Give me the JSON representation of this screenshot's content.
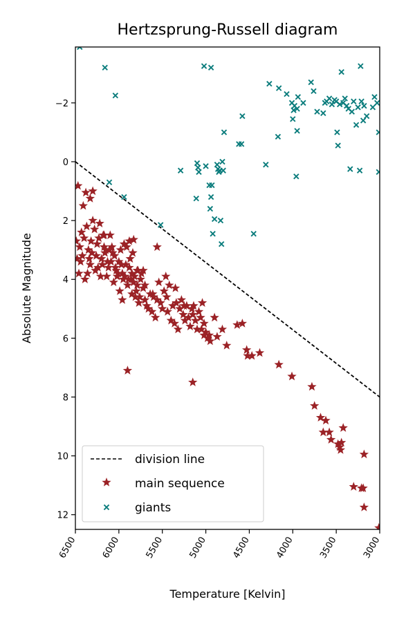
{
  "chart_data": {
    "type": "scatter",
    "title": "Hertzsprung-Russell diagram",
    "xlabel": "Temperature [Kelvin]",
    "ylabel": "Absolute Magnitude",
    "xlim": [
      6500,
      3000
    ],
    "ylim": [
      12.5,
      -3.9
    ],
    "xticks": [
      6500,
      6000,
      5500,
      5000,
      4500,
      4000,
      3500,
      3000
    ],
    "xtick_labels": [
      "6500",
      "6000",
      "5500",
      "5000",
      "4500",
      "4000",
      "3500",
      "3000"
    ],
    "yticks": [
      -2,
      0,
      2,
      4,
      6,
      8,
      10,
      12
    ],
    "ytick_labels": [
      "−2",
      "0",
      "2",
      "4",
      "6",
      "8",
      "10",
      "12"
    ],
    "grid": false,
    "legend_position": "lower-left",
    "colors": {
      "division_line": "#000000",
      "main_sequence": "#9b2226",
      "giants": "#0a7c7c"
    },
    "series": [
      {
        "name": "division line",
        "kind": "line",
        "points": [
          [
            6500,
            0
          ],
          [
            3000,
            8
          ]
        ]
      },
      {
        "name": "main sequence",
        "kind": "scatter",
        "marker": "star",
        "points": [
          [
            6470,
            0.82
          ],
          [
            6410,
            1.5
          ],
          [
            6380,
            1.05
          ],
          [
            6330,
            1.25
          ],
          [
            6300,
            1.0
          ],
          [
            6490,
            2.7
          ],
          [
            6450,
            2.9
          ],
          [
            6420,
            3.2
          ],
          [
            6400,
            2.6
          ],
          [
            6370,
            2.2
          ],
          [
            6350,
            3.0
          ],
          [
            6330,
            3.5
          ],
          [
            6300,
            2.0
          ],
          [
            6280,
            2.3
          ],
          [
            6250,
            2.8
          ],
          [
            6220,
            2.1
          ],
          [
            6200,
            3.3
          ],
          [
            6180,
            2.5
          ],
          [
            6150,
            3.0
          ],
          [
            6120,
            3.6
          ],
          [
            6100,
            2.5
          ],
          [
            6080,
            2.9
          ],
          [
            6050,
            3.2
          ],
          [
            6030,
            3.7
          ],
          [
            6000,
            3.4
          ],
          [
            5980,
            3.0
          ],
          [
            5960,
            3.8
          ],
          [
            5940,
            2.8
          ],
          [
            5920,
            3.5
          ],
          [
            5900,
            4.2
          ],
          [
            5880,
            3.6
          ],
          [
            5860,
            4.0
          ],
          [
            5840,
            3.1
          ],
          [
            5820,
            3.9
          ],
          [
            5800,
            4.4
          ],
          [
            5780,
            3.7
          ],
          [
            5760,
            4.6
          ],
          [
            5740,
            3.8
          ],
          [
            5720,
            4.3
          ],
          [
            5700,
            4.7
          ],
          [
            6460,
            3.8
          ],
          [
            6440,
            3.4
          ],
          [
            6390,
            4.0
          ],
          [
            6360,
            3.8
          ],
          [
            6340,
            3.3
          ],
          [
            6310,
            3.1
          ],
          [
            6270,
            3.7
          ],
          [
            6240,
            3.6
          ],
          [
            6210,
            3.9
          ],
          [
            6190,
            3.5
          ],
          [
            6160,
            3.1
          ],
          [
            6140,
            3.9
          ],
          [
            6110,
            3.0
          ],
          [
            6090,
            3.4
          ],
          [
            6060,
            4.1
          ],
          [
            6040,
            3.6
          ],
          [
            6010,
            3.8
          ],
          [
            5990,
            4.4
          ],
          [
            5970,
            3.5
          ],
          [
            5950,
            4.0
          ],
          [
            5930,
            3.9
          ],
          [
            5910,
            2.9
          ],
          [
            5890,
            4.0
          ],
          [
            5870,
            3.3
          ],
          [
            5850,
            4.5
          ],
          [
            5830,
            4.1
          ],
          [
            5810,
            4.6
          ],
          [
            5790,
            4.2
          ],
          [
            5770,
            4.8
          ],
          [
            5750,
            4.0
          ],
          [
            6480,
            3.3
          ],
          [
            6430,
            2.4
          ],
          [
            6320,
            2.7
          ],
          [
            6260,
            3.2
          ],
          [
            6230,
            2.6
          ],
          [
            6170,
            2.9
          ],
          [
            6130,
            3.4
          ],
          [
            6070,
            3.1
          ],
          [
            6020,
            3.9
          ],
          [
            6170,
            2.5
          ],
          [
            5960,
            4.7
          ],
          [
            5880,
            2.7
          ],
          [
            5850,
            3.8
          ],
          [
            5830,
            2.65
          ],
          [
            5790,
            3.7
          ],
          [
            5700,
            4.2
          ],
          [
            5680,
            4.9
          ],
          [
            5660,
            5.0
          ],
          [
            5640,
            4.5
          ],
          [
            5620,
            5.1
          ],
          [
            5600,
            4.6
          ],
          [
            5580,
            5.3
          ],
          [
            5560,
            2.9
          ],
          [
            5540,
            4.1
          ],
          [
            5520,
            4.8
          ],
          [
            5500,
            5.0
          ],
          [
            5480,
            4.4
          ],
          [
            5460,
            3.9
          ],
          [
            5440,
            5.1
          ],
          [
            5420,
            4.2
          ],
          [
            5400,
            5.4
          ],
          [
            5380,
            4.9
          ],
          [
            5360,
            5.5
          ],
          [
            5340,
            4.8
          ],
          [
            5320,
            5.7
          ],
          [
            5300,
            5.0
          ],
          [
            5280,
            4.7
          ],
          [
            5260,
            5.2
          ],
          [
            5240,
            5.4
          ],
          [
            5220,
            4.9
          ],
          [
            5200,
            5.3
          ],
          [
            5180,
            5.6
          ],
          [
            5160,
            5.0
          ],
          [
            5140,
            4.9
          ],
          [
            5120,
            5.4
          ],
          [
            5100,
            5.7
          ],
          [
            5080,
            5.1
          ],
          [
            5060,
            5.3
          ],
          [
            5040,
            4.8
          ],
          [
            5020,
            5.5
          ],
          [
            5000,
            5.8
          ],
          [
            4980,
            6.0
          ],
          [
            4960,
            5.9
          ],
          [
            4900,
            5.3
          ],
          [
            4870,
            5.95
          ],
          [
            4810,
            5.7
          ],
          [
            4760,
            6.25
          ],
          [
            4640,
            5.55
          ],
          [
            4580,
            5.5
          ],
          [
            4520,
            6.6
          ],
          [
            4470,
            6.6
          ],
          [
            4530,
            6.4
          ],
          [
            4380,
            6.5
          ],
          [
            4160,
            6.9
          ],
          [
            4010,
            7.3
          ],
          [
            5900,
            7.1
          ],
          [
            5150,
            7.5
          ],
          [
            3780,
            7.65
          ],
          [
            3750,
            8.3
          ],
          [
            3680,
            8.7
          ],
          [
            3650,
            9.2
          ],
          [
            3620,
            8.8
          ],
          [
            3580,
            9.2
          ],
          [
            3560,
            9.45
          ],
          [
            3480,
            9.6
          ],
          [
            3460,
            9.7
          ],
          [
            3450,
            9.8
          ],
          [
            3440,
            9.55
          ],
          [
            3420,
            9.05
          ],
          [
            3180,
            9.95
          ],
          [
            3300,
            11.05
          ],
          [
            3210,
            11.1
          ],
          [
            3190,
            11.1
          ],
          [
            3180,
            11.75
          ],
          [
            3010,
            12.45
          ],
          [
            5450,
            4.6
          ],
          [
            5350,
            4.3
          ],
          [
            5250,
            4.9
          ],
          [
            5150,
            5.2
          ],
          [
            5050,
            5.7
          ],
          [
            5020,
            5.9
          ],
          [
            4950,
            6.1
          ],
          [
            5720,
            3.7
          ],
          [
            5610,
            4.5
          ],
          [
            5560,
            4.7
          ]
        ]
      },
      {
        "name": "giants",
        "kind": "scatter",
        "marker": "x",
        "points": [
          [
            6450,
            -3.9
          ],
          [
            6160,
            -3.2
          ],
          [
            6040,
            -2.25
          ],
          [
            6110,
            0.7
          ],
          [
            5940,
            1.2
          ],
          [
            5520,
            2.15
          ],
          [
            5290,
            0.3
          ],
          [
            5110,
            1.25
          ],
          [
            5100,
            0.05
          ],
          [
            5090,
            0.2
          ],
          [
            5080,
            0.35
          ],
          [
            5020,
            -3.25
          ],
          [
            5000,
            0.15
          ],
          [
            4940,
            -3.2
          ],
          [
            4960,
            0.8
          ],
          [
            4950,
            1.6
          ],
          [
            4940,
            1.2
          ],
          [
            4930,
            0.8
          ],
          [
            4920,
            2.45
          ],
          [
            4900,
            1.95
          ],
          [
            4870,
            0.1
          ],
          [
            4860,
            0.25
          ],
          [
            4850,
            0.35
          ],
          [
            4840,
            0.3
          ],
          [
            4830,
            2.0
          ],
          [
            4820,
            2.8
          ],
          [
            4810,
            0.0
          ],
          [
            4800,
            0.3
          ],
          [
            4790,
            -1.0
          ],
          [
            4620,
            -0.6
          ],
          [
            4590,
            -0.6
          ],
          [
            4580,
            -1.55
          ],
          [
            4450,
            2.45
          ],
          [
            4310,
            0.1
          ],
          [
            4270,
            -2.65
          ],
          [
            4170,
            -0.85
          ],
          [
            4160,
            -2.5
          ],
          [
            4070,
            -2.3
          ],
          [
            4010,
            -2.0
          ],
          [
            4000,
            -1.45
          ],
          [
            3990,
            -1.75
          ],
          [
            3980,
            -1.9
          ],
          [
            3960,
            0.5
          ],
          [
            3950,
            -1.05
          ],
          [
            3950,
            -1.8
          ],
          [
            3940,
            -2.2
          ],
          [
            3880,
            -2.0
          ],
          [
            3790,
            -2.7
          ],
          [
            3760,
            -2.4
          ],
          [
            3720,
            -1.7
          ],
          [
            3650,
            -1.65
          ],
          [
            3630,
            -2.0
          ],
          [
            3610,
            -2.05
          ],
          [
            3580,
            -2.15
          ],
          [
            3550,
            -1.95
          ],
          [
            3520,
            -2.1
          ],
          [
            3500,
            -2.05
          ],
          [
            3490,
            -1.0
          ],
          [
            3480,
            -0.55
          ],
          [
            3460,
            -1.95
          ],
          [
            3440,
            -3.05
          ],
          [
            3420,
            -2.0
          ],
          [
            3400,
            -2.15
          ],
          [
            3380,
            -1.9
          ],
          [
            3360,
            -1.8
          ],
          [
            3340,
            0.25
          ],
          [
            3320,
            -1.7
          ],
          [
            3300,
            -2.05
          ],
          [
            3270,
            -1.25
          ],
          [
            3250,
            -1.85
          ],
          [
            3220,
            -3.25
          ],
          [
            3230,
            0.3
          ],
          [
            3210,
            -2.05
          ],
          [
            3190,
            -1.4
          ],
          [
            3180,
            -1.9
          ],
          [
            3150,
            -1.55
          ],
          [
            3080,
            -1.85
          ],
          [
            3060,
            -2.2
          ],
          [
            3030,
            -2.0
          ],
          [
            3010,
            -1.0
          ],
          [
            3010,
            0.35
          ]
        ]
      }
    ]
  }
}
